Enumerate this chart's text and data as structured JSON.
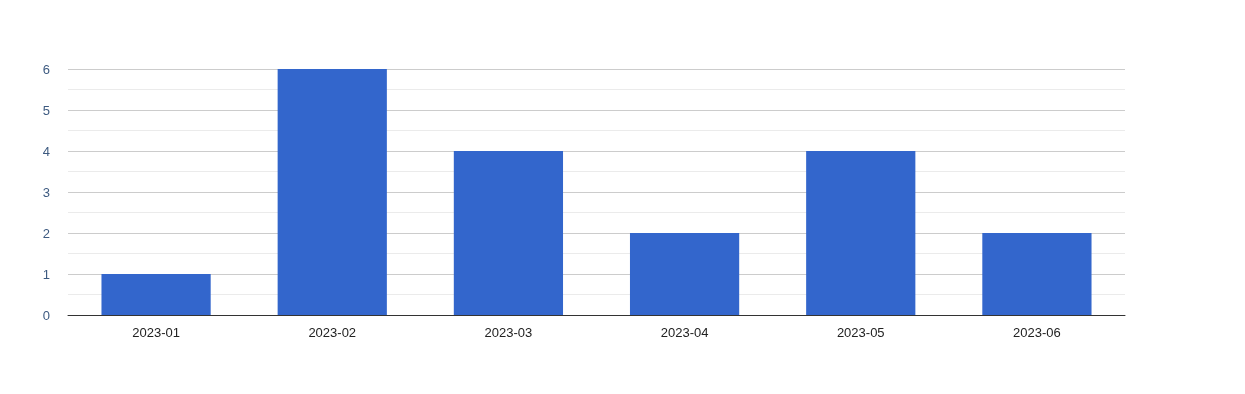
{
  "chart_data": {
    "type": "bar",
    "categories": [
      "2023-01",
      "2023-02",
      "2023-03",
      "2023-04",
      "2023-05",
      "2023-06"
    ],
    "values": [
      1,
      6,
      4,
      2,
      4,
      2
    ],
    "color": "#3366cc",
    "ylim": [
      0,
      6
    ],
    "yticks": [
      0,
      1,
      2,
      3,
      4,
      5,
      6
    ],
    "grid": "y"
  }
}
